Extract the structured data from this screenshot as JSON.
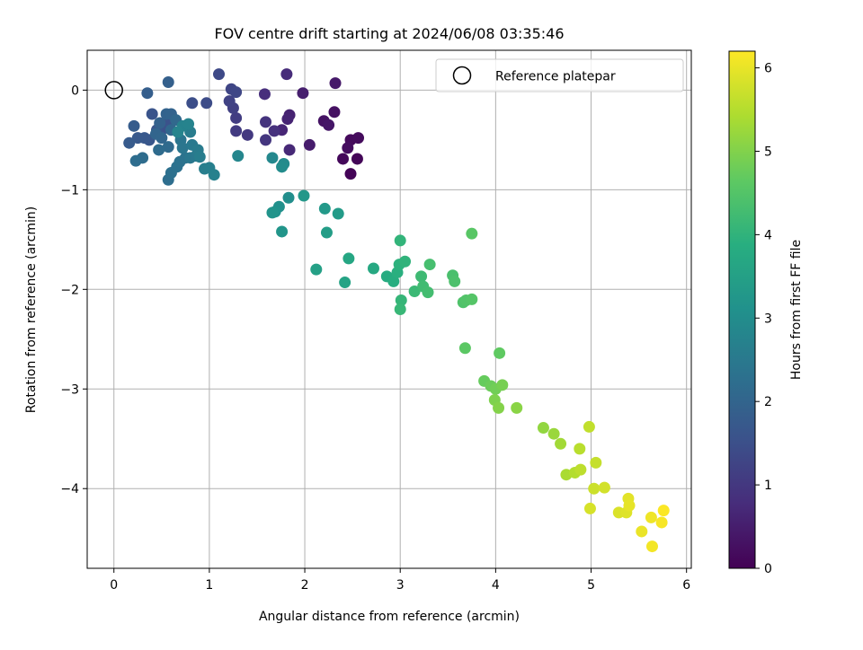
{
  "chart_data": {
    "type": "scatter",
    "title": "FOV centre drift starting at 2024/06/08 03:35:46",
    "xlabel": "Angular distance from reference (arcmin)",
    "ylabel": "Rotation from reference (arcmin)",
    "xlim": [
      -0.28,
      6.05
    ],
    "ylim": [
      -4.8,
      0.4
    ],
    "xticks": [
      0,
      1,
      2,
      3,
      4,
      5,
      6
    ],
    "yticks": [
      0,
      -1,
      -2,
      -3,
      -4
    ],
    "xtick_labels": [
      "0",
      "1",
      "2",
      "3",
      "4",
      "5",
      "6"
    ],
    "ytick_labels": [
      "0",
      "−1",
      "−2",
      "−3",
      "−4"
    ],
    "grid": true,
    "legend": {
      "position": "top-right",
      "entries": [
        {
          "label": "Reference platepar",
          "marker": "open-circle"
        }
      ]
    },
    "reference_point": {
      "x": 0,
      "y": 0
    },
    "colorbar": {
      "label": "Hours from first FF file",
      "colormap": "viridis",
      "range": [
        0,
        6.2
      ],
      "ticks": [
        0,
        1,
        2,
        3,
        4,
        5,
        6
      ],
      "tick_labels": [
        "0",
        "1",
        "2",
        "3",
        "4",
        "5",
        "6"
      ]
    },
    "series": [
      {
        "points": [
          [
            2.48,
            -0.84,
            0.05
          ],
          [
            2.55,
            -0.69,
            0.08
          ],
          [
            2.4,
            -0.69,
            0.12
          ],
          [
            2.48,
            -0.5,
            0.15
          ],
          [
            2.56,
            -0.48,
            0.18
          ],
          [
            2.45,
            -0.58,
            0.22
          ],
          [
            2.31,
            -0.22,
            0.28
          ],
          [
            2.2,
            -0.31,
            0.32
          ],
          [
            2.25,
            -0.35,
            0.37
          ],
          [
            2.32,
            0.07,
            0.42
          ],
          [
            2.05,
            -0.55,
            0.47
          ],
          [
            1.98,
            -0.03,
            0.52
          ],
          [
            1.84,
            -0.25,
            0.58
          ],
          [
            1.82,
            -0.29,
            0.62
          ],
          [
            1.76,
            -0.4,
            0.66
          ],
          [
            1.84,
            -0.6,
            0.7
          ],
          [
            1.81,
            0.16,
            0.75
          ],
          [
            1.58,
            -0.04,
            0.8
          ],
          [
            1.68,
            -0.41,
            0.86
          ],
          [
            1.59,
            -0.32,
            0.92
          ],
          [
            1.59,
            -0.5,
            0.97
          ],
          [
            1.4,
            -0.45,
            1.02
          ],
          [
            1.28,
            -0.41,
            1.07
          ],
          [
            1.28,
            -0.28,
            1.12
          ],
          [
            1.25,
            -0.18,
            1.17
          ],
          [
            1.21,
            -0.11,
            1.22
          ],
          [
            1.23,
            0.01,
            1.27
          ],
          [
            1.28,
            -0.02,
            1.32
          ],
          [
            1.1,
            0.16,
            1.37
          ],
          [
            0.97,
            -0.13,
            1.42
          ],
          [
            0.82,
            -0.13,
            1.47
          ],
          [
            0.54,
            -0.38,
            1.52
          ],
          [
            0.58,
            -0.32,
            1.56
          ],
          [
            0.4,
            -0.24,
            1.6
          ],
          [
            0.45,
            -0.4,
            1.63
          ],
          [
            0.37,
            -0.5,
            1.66
          ],
          [
            0.32,
            -0.48,
            1.7
          ],
          [
            0.25,
            -0.48,
            1.73
          ],
          [
            0.16,
            -0.53,
            1.76
          ],
          [
            0.21,
            -0.36,
            1.8
          ],
          [
            0.35,
            -0.03,
            1.84
          ],
          [
            0.57,
            0.08,
            1.88
          ],
          [
            0.48,
            -0.33,
            1.91
          ],
          [
            0.55,
            -0.24,
            1.94
          ],
          [
            0.6,
            -0.24,
            1.97
          ],
          [
            0.44,
            -0.44,
            2.0
          ],
          [
            0.5,
            -0.48,
            2.03
          ],
          [
            0.6,
            -0.4,
            2.06
          ],
          [
            0.65,
            -0.3,
            2.09
          ],
          [
            0.57,
            -0.57,
            2.12
          ],
          [
            0.47,
            -0.6,
            2.15
          ],
          [
            0.3,
            -0.68,
            2.18
          ],
          [
            0.23,
            -0.71,
            2.21
          ],
          [
            0.57,
            -0.9,
            2.24
          ],
          [
            0.6,
            -0.83,
            2.27
          ],
          [
            0.66,
            -0.77,
            2.3
          ],
          [
            0.69,
            -0.72,
            2.33
          ],
          [
            0.75,
            -0.68,
            2.36
          ],
          [
            0.7,
            -0.5,
            2.39
          ],
          [
            0.72,
            -0.58,
            2.42
          ],
          [
            0.8,
            -0.68,
            2.45
          ],
          [
            0.86,
            -0.66,
            2.48
          ],
          [
            0.82,
            -0.55,
            2.51
          ],
          [
            0.88,
            -0.6,
            2.54
          ],
          [
            0.8,
            -0.42,
            2.57
          ],
          [
            0.9,
            -0.67,
            2.6
          ],
          [
            0.95,
            -0.79,
            2.63
          ],
          [
            1.0,
            -0.78,
            2.66
          ],
          [
            1.05,
            -0.85,
            2.69
          ],
          [
            0.72,
            -0.36,
            2.72
          ],
          [
            0.78,
            -0.34,
            2.75
          ],
          [
            0.67,
            -0.42,
            2.78
          ],
          [
            1.3,
            -0.66,
            2.82
          ],
          [
            1.66,
            -0.68,
            2.87
          ],
          [
            1.78,
            -0.74,
            2.92
          ],
          [
            1.76,
            -0.77,
            2.97
          ],
          [
            1.83,
            -1.08,
            3.02
          ],
          [
            1.73,
            -1.17,
            3.07
          ],
          [
            1.69,
            -1.22,
            3.12
          ],
          [
            1.66,
            -1.23,
            3.17
          ],
          [
            1.76,
            -1.42,
            3.22
          ],
          [
            1.99,
            -1.06,
            3.27
          ],
          [
            2.21,
            -1.19,
            3.32
          ],
          [
            2.35,
            -1.24,
            3.37
          ],
          [
            2.23,
            -1.43,
            3.42
          ],
          [
            2.12,
            -1.8,
            3.5
          ],
          [
            2.42,
            -1.93,
            3.58
          ],
          [
            2.46,
            -1.69,
            3.65
          ],
          [
            2.72,
            -1.79,
            3.72
          ],
          [
            2.86,
            -1.87,
            3.79
          ],
          [
            2.93,
            -1.92,
            3.85
          ],
          [
            2.97,
            -1.83,
            3.9
          ],
          [
            2.99,
            -1.75,
            3.95
          ],
          [
            3.05,
            -1.72,
            4.0
          ],
          [
            3.0,
            -1.51,
            4.04
          ],
          [
            3.01,
            -2.11,
            4.08
          ],
          [
            3.0,
            -2.2,
            4.12
          ],
          [
            3.15,
            -2.02,
            4.16
          ],
          [
            3.22,
            -1.87,
            4.2
          ],
          [
            3.24,
            -1.97,
            4.24
          ],
          [
            3.29,
            -2.03,
            4.28
          ],
          [
            3.31,
            -1.75,
            4.32
          ],
          [
            3.55,
            -1.86,
            4.36
          ],
          [
            3.57,
            -1.92,
            4.4
          ],
          [
            3.66,
            -2.13,
            4.44
          ],
          [
            3.69,
            -2.11,
            4.48
          ],
          [
            3.75,
            -2.1,
            4.52
          ],
          [
            3.75,
            -1.44,
            4.56
          ],
          [
            3.68,
            -2.59,
            4.6
          ],
          [
            4.04,
            -2.64,
            4.66
          ],
          [
            3.88,
            -2.92,
            4.72
          ],
          [
            3.95,
            -2.97,
            4.78
          ],
          [
            4.0,
            -3.0,
            4.84
          ],
          [
            4.07,
            -2.96,
            4.9
          ],
          [
            3.99,
            -3.11,
            4.96
          ],
          [
            4.03,
            -3.19,
            5.02
          ],
          [
            4.22,
            -3.19,
            5.08
          ],
          [
            4.5,
            -3.39,
            5.16
          ],
          [
            4.61,
            -3.45,
            5.24
          ],
          [
            4.68,
            -3.55,
            5.32
          ],
          [
            4.74,
            -3.86,
            5.4
          ],
          [
            4.83,
            -3.84,
            5.48
          ],
          [
            4.88,
            -3.6,
            5.54
          ],
          [
            4.89,
            -3.81,
            5.58
          ],
          [
            4.98,
            -3.38,
            5.62
          ],
          [
            5.05,
            -3.74,
            5.66
          ],
          [
            5.03,
            -4.0,
            5.72
          ],
          [
            5.14,
            -3.99,
            5.78
          ],
          [
            4.99,
            -4.2,
            5.82
          ],
          [
            5.29,
            -4.24,
            5.86
          ],
          [
            5.37,
            -4.24,
            5.9
          ],
          [
            5.39,
            -4.1,
            5.94
          ],
          [
            5.4,
            -4.17,
            5.98
          ],
          [
            5.53,
            -4.43,
            6.02
          ],
          [
            5.63,
            -4.29,
            6.06
          ],
          [
            5.64,
            -4.58,
            6.1
          ],
          [
            5.74,
            -4.34,
            6.14
          ],
          [
            5.76,
            -4.22,
            6.18
          ]
        ]
      }
    ]
  }
}
